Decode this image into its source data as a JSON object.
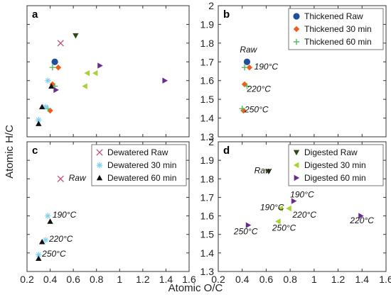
{
  "figure": {
    "xlabel": "Atomic O/C",
    "ylabel": "Atomic H/C",
    "colors": {
      "thickened_raw": "#1f4e9c",
      "thickened_30": "#f05a1a",
      "thickened_60": "#5cb85c",
      "dewatered_raw": "#c0506e",
      "dewatered_30": "#7fd1f0",
      "dewatered_60": "#111111",
      "digested_raw": "#2e4a14",
      "digested_30": "#a6d33a",
      "digested_60": "#6a2a8f",
      "axis": "#333333",
      "grid": "#aaaaaa"
    }
  },
  "chart_data": [
    {
      "panel": "a",
      "type": "scatter",
      "xlim": [
        0.2,
        1.6
      ],
      "ylim": [
        1.3,
        2.0
      ],
      "xticks": [
        0.2,
        0.4,
        0.6,
        0.8,
        1.0,
        1.2,
        1.4,
        1.6
      ],
      "yticks": [],
      "show_xtick_labels": false,
      "show_ytick_labels": false,
      "legend": null,
      "annotations": [],
      "series": [
        {
          "key": "thickened_raw",
          "marker": "circle",
          "points": [
            [
              0.44,
              1.7
            ]
          ]
        },
        {
          "key": "thickened_30",
          "marker": "diamond",
          "points": [
            [
              0.47,
              1.67
            ],
            [
              0.42,
              1.58
            ],
            [
              0.4,
              1.44
            ]
          ]
        },
        {
          "key": "thickened_60",
          "marker": "plus",
          "points": [
            [
              0.42,
              1.67
            ],
            [
              0.44,
              1.57
            ],
            [
              0.38,
              1.45
            ]
          ]
        },
        {
          "key": "dewatered_raw",
          "marker": "x",
          "points": [
            [
              0.49,
              1.8
            ]
          ]
        },
        {
          "key": "dewatered_30",
          "marker": "asterisk",
          "points": [
            [
              0.38,
              1.6
            ],
            [
              0.36,
              1.46
            ],
            [
              0.3,
              1.39
            ]
          ]
        },
        {
          "key": "dewatered_60",
          "marker": "triangle-up",
          "points": [
            [
              0.41,
              1.57
            ],
            [
              0.33,
              1.46
            ],
            [
              0.3,
              1.37
            ]
          ]
        },
        {
          "key": "digested_raw",
          "marker": "triangle-down",
          "points": [
            [
              0.62,
              1.84
            ]
          ]
        },
        {
          "key": "digested_30",
          "marker": "triangle-left",
          "points": [
            [
              0.72,
              1.64
            ],
            [
              0.79,
              1.64
            ],
            [
              0.7,
              1.57
            ]
          ]
        },
        {
          "key": "digested_60",
          "marker": "triangle-right",
          "points": [
            [
              0.83,
              1.68
            ],
            [
              1.39,
              1.6
            ],
            [
              0.45,
              1.55
            ]
          ]
        }
      ]
    },
    {
      "panel": "b",
      "type": "scatter",
      "xlim": [
        0.2,
        1.6
      ],
      "ylim": [
        1.3,
        2.0
      ],
      "xticks": [
        0.2,
        0.4,
        0.6,
        0.8,
        1.0,
        1.2,
        1.4,
        1.6
      ],
      "yticks": [
        "1.3",
        "1.4",
        "1.5",
        "1.6",
        "1.7",
        "1.8",
        "1.9",
        "2"
      ],
      "show_xtick_labels": false,
      "show_ytick_labels": true,
      "legend": {
        "placement": "top-right",
        "entries": [
          {
            "key": "thickened_raw",
            "marker": "circle",
            "label": "Thickened Raw"
          },
          {
            "key": "thickened_30",
            "marker": "diamond",
            "label": "Thickened 30 min"
          },
          {
            "key": "thickened_60",
            "marker": "plus",
            "label": "Thickened 60 min"
          }
        ]
      },
      "annotations": [
        {
          "text": "Raw",
          "x": 0.38,
          "y": 1.75
        },
        {
          "text": "190°C",
          "x": 0.5,
          "y": 1.66
        },
        {
          "text": "220°C",
          "x": 0.44,
          "y": 1.54
        },
        {
          "text": "250°C",
          "x": 0.42,
          "y": 1.43
        }
      ],
      "series": [
        {
          "key": "thickened_raw",
          "marker": "circle",
          "points": [
            [
              0.44,
              1.7
            ]
          ]
        },
        {
          "key": "thickened_30",
          "marker": "diamond",
          "points": [
            [
              0.46,
              1.67
            ],
            [
              0.42,
              1.58
            ],
            [
              0.41,
              1.44
            ]
          ]
        },
        {
          "key": "thickened_60",
          "marker": "plus",
          "points": [
            [
              0.42,
              1.67
            ],
            [
              0.44,
              1.57
            ],
            [
              0.4,
              1.45
            ]
          ]
        }
      ]
    },
    {
      "panel": "c",
      "type": "scatter",
      "xlim": [
        0.2,
        1.6
      ],
      "ylim": [
        1.3,
        2.0
      ],
      "xticks": [
        "0.2",
        "0.4",
        "0.6",
        "0.8",
        "1",
        "1.2",
        "1.4",
        "1.6"
      ],
      "yticks": [],
      "show_xtick_labels": true,
      "show_ytick_labels": false,
      "legend": {
        "placement": "top-right",
        "entries": [
          {
            "key": "dewatered_raw",
            "marker": "x",
            "label": "Dewatered Raw"
          },
          {
            "key": "dewatered_30",
            "marker": "asterisk",
            "label": "Dewatered 30 min"
          },
          {
            "key": "dewatered_60",
            "marker": "triangle-up",
            "label": "Dewatered 60 min"
          }
        ]
      },
      "annotations": [
        {
          "text": "Raw",
          "x": 0.56,
          "y": 1.79
        },
        {
          "text": "190°C",
          "x": 0.42,
          "y": 1.59
        },
        {
          "text": "220°C",
          "x": 0.39,
          "y": 1.46
        },
        {
          "text": "250°C",
          "x": 0.33,
          "y": 1.38
        }
      ],
      "series": [
        {
          "key": "dewatered_raw",
          "marker": "x",
          "points": [
            [
              0.49,
              1.8
            ]
          ]
        },
        {
          "key": "dewatered_30",
          "marker": "asterisk",
          "points": [
            [
              0.38,
              1.6
            ],
            [
              0.36,
              1.47
            ],
            [
              0.3,
              1.39
            ]
          ]
        },
        {
          "key": "dewatered_60",
          "marker": "triangle-up",
          "points": [
            [
              0.4,
              1.57
            ],
            [
              0.33,
              1.46
            ],
            [
              0.3,
              1.37
            ]
          ]
        }
      ]
    },
    {
      "panel": "d",
      "type": "scatter",
      "xlim": [
        0.2,
        1.6
      ],
      "ylim": [
        1.3,
        2.0
      ],
      "xticks": [
        "0.2",
        "0.4",
        "0.6",
        "0.8",
        "1",
        "1.2",
        "1.4",
        "1.6"
      ],
      "yticks": [
        "1.3",
        "1.4",
        "1.5",
        "1.6",
        "1.7",
        "1.8",
        "1.9",
        "2"
      ],
      "show_xtick_labels": true,
      "show_ytick_labels": true,
      "legend": {
        "placement": "top-right",
        "entries": [
          {
            "key": "digested_raw",
            "marker": "triangle-down",
            "label": "Digested Raw"
          },
          {
            "key": "digested_30",
            "marker": "triangle-left",
            "label": "Digested 30 min"
          },
          {
            "key": "digested_60",
            "marker": "triangle-right",
            "label": "Digested 60 min"
          }
        ]
      },
      "annotations": [
        {
          "text": "Raw",
          "x": 0.5,
          "y": 1.83
        },
        {
          "text": "190°C",
          "x": 0.8,
          "y": 1.7
        },
        {
          "text": "190°C",
          "x": 0.55,
          "y": 1.63
        },
        {
          "text": "220°C",
          "x": 0.82,
          "y": 1.59
        },
        {
          "text": "250°C",
          "x": 0.65,
          "y": 1.52
        },
        {
          "text": "250°C",
          "x": 0.33,
          "y": 1.5
        },
        {
          "text": "220°C",
          "x": 1.3,
          "y": 1.56
        }
      ],
      "series": [
        {
          "key": "digested_raw",
          "marker": "triangle-down",
          "points": [
            [
              0.62,
              1.84
            ]
          ]
        },
        {
          "key": "digested_30",
          "marker": "triangle-left",
          "points": [
            [
              0.72,
              1.64
            ],
            [
              0.79,
              1.64
            ],
            [
              0.7,
              1.57
            ]
          ]
        },
        {
          "key": "digested_60",
          "marker": "triangle-right",
          "points": [
            [
              0.83,
              1.68
            ],
            [
              1.39,
              1.6
            ],
            [
              0.45,
              1.55
            ]
          ]
        }
      ]
    }
  ]
}
